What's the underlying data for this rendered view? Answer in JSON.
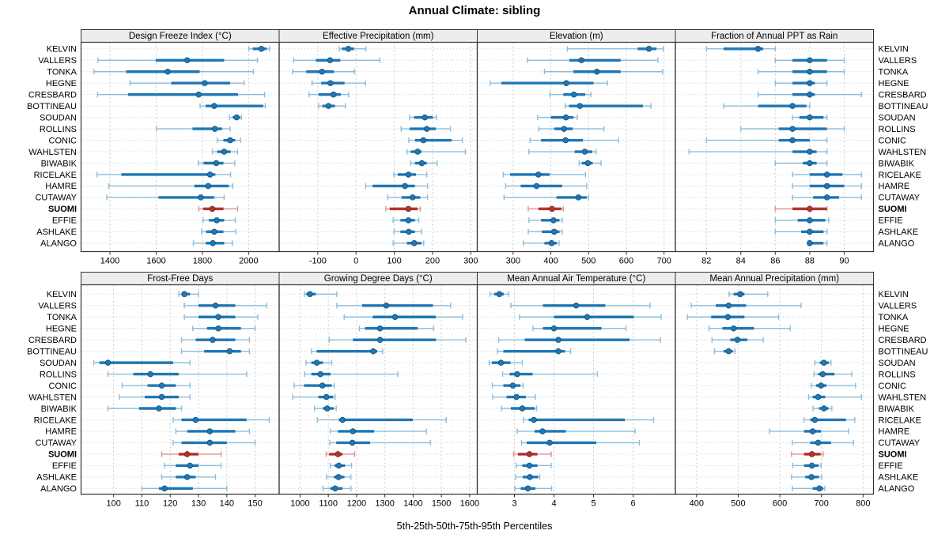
{
  "title": "Annual Climate: sibling",
  "footer_label": "5th-25th-50th-75th-95th Percentiles",
  "colors": {
    "series": "#1f77b4",
    "series_light": "#8bbcdc",
    "series_dark": "#0e4d79",
    "highlight": "#b33330",
    "highlight_light": "#e0968f",
    "highlight_dark": "#7a1f1c",
    "strip_bg": "#ededed",
    "panel_border": "#333333",
    "grid": "#c9c9c9",
    "text": "#000000"
  },
  "chart_data": {
    "type": "percentile-dotplot",
    "percentiles": [
      "5th",
      "25th",
      "50th",
      "75th",
      "95th"
    ],
    "legend_note": "thin line = 5th-95th, thick line = 25th-75th, dot = 50th",
    "sites": [
      "KELVIN",
      "VALLERS",
      "TONKA",
      "HEGNE",
      "CRESBARD",
      "BOTTINEAU",
      "SOUDAN",
      "ROLLINS",
      "CONIC",
      "WAHLSTEN",
      "BIWABIK",
      "RICELAKE",
      "HAMRE",
      "CUTAWAY",
      "SUOMI",
      "EFFIE",
      "ASHLAKE",
      "ALANGO"
    ],
    "highlight_site": "SUOMI",
    "grid": true,
    "panels": [
      {
        "title": "Design Freeze Index (°C)",
        "row": 0,
        "col": 0,
        "xlim": [
          1275,
          2132
        ],
        "ticks": [
          1400,
          1600,
          1800,
          2000
        ],
        "values": [
          [
            2000,
            2018,
            2055,
            2078,
            2090
          ],
          [
            1348,
            1598,
            1734,
            1894,
            2038
          ],
          [
            1331,
            1470,
            1650,
            1788,
            2020
          ],
          [
            1487,
            1665,
            1810,
            1920,
            1980
          ],
          [
            1346,
            1478,
            1784,
            1954,
            2069
          ],
          [
            1790,
            1814,
            1851,
            2063,
            2072
          ],
          [
            1917,
            1931,
            1948,
            1963,
            1969
          ],
          [
            1601,
            1757,
            1854,
            1885,
            1920
          ],
          [
            1864,
            1891,
            1920,
            1942,
            1965
          ],
          [
            1843,
            1864,
            1894,
            1922,
            1952
          ],
          [
            1782,
            1805,
            1860,
            1891,
            1940
          ],
          [
            1344,
            1449,
            1833,
            1856,
            1922
          ],
          [
            1395,
            1765,
            1825,
            1914,
            1931
          ],
          [
            1386,
            1610,
            1793,
            1851,
            1894
          ],
          [
            1784,
            1803,
            1843,
            1891,
            1952
          ],
          [
            1803,
            1828,
            1862,
            1894,
            1942
          ],
          [
            1796,
            1816,
            1851,
            1891,
            1945
          ],
          [
            1761,
            1814,
            1845,
            1894,
            1929
          ]
        ]
      },
      {
        "title": "Effective Precipitation (mm)",
        "row": 0,
        "col": 1,
        "xlim": [
          -201,
          317
        ],
        "ticks": [
          -100,
          0,
          100,
          200,
          300
        ],
        "values": [
          [
            -44,
            -37,
            -20,
            -5,
            26
          ],
          [
            -163,
            -105,
            -68,
            -41,
            62
          ],
          [
            -166,
            -130,
            -89,
            -58,
            -4
          ],
          [
            -115,
            -91,
            -67,
            -30,
            25
          ],
          [
            -123,
            -98,
            -59,
            -40,
            -19
          ],
          [
            -98,
            -88,
            -72,
            -55,
            -28
          ],
          [
            140,
            152,
            180,
            201,
            210
          ],
          [
            118,
            140,
            185,
            209,
            247
          ],
          [
            138,
            154,
            176,
            250,
            278
          ],
          [
            133,
            143,
            161,
            171,
            286
          ],
          [
            143,
            154,
            172,
            185,
            212
          ],
          [
            99,
            109,
            137,
            157,
            185
          ],
          [
            25,
            43,
            128,
            154,
            187
          ],
          [
            83,
            119,
            148,
            168,
            187
          ],
          [
            78,
            88,
            137,
            161,
            168
          ],
          [
            97,
            116,
            137,
            154,
            164
          ],
          [
            99,
            116,
            138,
            154,
            171
          ],
          [
            97,
            133,
            152,
            171,
            177
          ]
        ]
      },
      {
        "title": "Elevation (m)",
        "row": 0,
        "col": 2,
        "xlim": [
          205,
          730
        ],
        "ticks": [
          300,
          400,
          500,
          600,
          700
        ],
        "values": [
          [
            444,
            630,
            660,
            680,
            698
          ],
          [
            338,
            449,
            481,
            585,
            684
          ],
          [
            383,
            460,
            522,
            585,
            696
          ],
          [
            239,
            269,
            441,
            513,
            550
          ],
          [
            397,
            433,
            461,
            491,
            506
          ],
          [
            438,
            448,
            477,
            644,
            665
          ],
          [
            365,
            400,
            440,
            460,
            470
          ],
          [
            368,
            409,
            435,
            458,
            541
          ],
          [
            345,
            374,
            439,
            485,
            579
          ],
          [
            342,
            463,
            490,
            510,
            520
          ],
          [
            475,
            482,
            498,
            511,
            533
          ],
          [
            274,
            292,
            367,
            397,
            492
          ],
          [
            280,
            320,
            362,
            430,
            495
          ],
          [
            276,
            415,
            473,
            495,
            500
          ],
          [
            340,
            367,
            403,
            428,
            433
          ],
          [
            342,
            374,
            407,
            423,
            430
          ],
          [
            340,
            376,
            409,
            423,
            430
          ],
          [
            327,
            383,
            402,
            416,
            422
          ]
        ]
      },
      {
        "title": "Fraction of Annual PPT as Rain",
        "row": 0,
        "col": 3,
        "xlim": [
          80.2,
          91.7
        ],
        "ticks": [
          82,
          84,
          86,
          88,
          90
        ],
        "values": [
          [
            82,
            83,
            85,
            85.3,
            86
          ],
          [
            86,
            87,
            88,
            89,
            90
          ],
          [
            85,
            87,
            88,
            89,
            90
          ],
          [
            86,
            87,
            88,
            88.3,
            89
          ],
          [
            85,
            87,
            88,
            88.3,
            91
          ],
          [
            83,
            85,
            87,
            87.8,
            88
          ],
          [
            87,
            87.4,
            88,
            88.8,
            89
          ],
          [
            84,
            86.2,
            87,
            89,
            90
          ],
          [
            82,
            86.2,
            87,
            88,
            89
          ],
          [
            81,
            87,
            88,
            88.4,
            89
          ],
          [
            86,
            87.6,
            88,
            88.4,
            89
          ],
          [
            87,
            88,
            89,
            89.9,
            91
          ],
          [
            87,
            88,
            89,
            90,
            91
          ],
          [
            87,
            88.2,
            89,
            89.7,
            91
          ],
          [
            86,
            87,
            88,
            89,
            89
          ],
          [
            86,
            87.3,
            88,
            88.9,
            89.1
          ],
          [
            86,
            87.5,
            88,
            88.8,
            89
          ],
          [
            87.9,
            88,
            88,
            88.8,
            89
          ]
        ]
      },
      {
        "title": "Frost-Free Days",
        "row": 1,
        "col": 0,
        "xlim": [
          88.5,
          158.5
        ],
        "ticks": [
          100,
          110,
          120,
          130,
          140,
          150
        ],
        "values": [
          [
            123,
            124,
            125,
            127,
            130
          ],
          [
            125,
            130,
            136,
            143,
            154
          ],
          [
            125,
            130,
            137,
            143,
            151
          ],
          [
            128,
            133,
            137,
            145,
            150
          ],
          [
            124,
            129,
            135,
            143,
            148
          ],
          [
            124,
            132,
            141,
            145,
            148
          ],
          [
            93,
            95,
            98,
            121,
            127
          ],
          [
            98,
            107,
            113,
            123,
            147
          ],
          [
            103,
            112,
            117,
            122,
            127
          ],
          [
            102,
            111,
            117,
            123,
            127
          ],
          [
            98,
            109,
            116,
            122,
            124
          ],
          [
            121,
            124,
            129,
            147,
            155
          ],
          [
            122,
            126,
            134,
            143,
            148
          ],
          [
            121,
            124,
            134,
            140,
            150
          ],
          [
            117,
            123,
            126,
            130,
            138
          ],
          [
            118,
            122,
            127,
            130,
            138
          ],
          [
            117,
            122,
            126,
            129,
            136
          ],
          [
            110,
            116,
            118,
            128,
            140
          ]
        ]
      },
      {
        "title": "Growing Degree Days (°C)",
        "row": 1,
        "col": 1,
        "xlim": [
          926,
          1627
        ],
        "ticks": [
          1000,
          1100,
          1200,
          1300,
          1400,
          1500,
          1600
        ],
        "values": [
          [
            1015,
            1022,
            1035,
            1056,
            1130
          ],
          [
            1130,
            1220,
            1305,
            1470,
            1533
          ],
          [
            1156,
            1257,
            1336,
            1480,
            1575
          ],
          [
            1210,
            1230,
            1283,
            1416,
            1472
          ],
          [
            1103,
            1187,
            1283,
            1481,
            1587
          ],
          [
            1040,
            1059,
            1259,
            1273,
            1292
          ],
          [
            1021,
            1040,
            1059,
            1081,
            1112
          ],
          [
            1016,
            1040,
            1072,
            1108,
            1346
          ],
          [
            979,
            1014,
            1079,
            1112,
            1121
          ],
          [
            974,
            1065,
            1093,
            1117,
            1124
          ],
          [
            1051,
            1081,
            1096,
            1119,
            1128
          ],
          [
            1061,
            1137,
            1150,
            1399,
            1517
          ],
          [
            1107,
            1134,
            1187,
            1262,
            1447
          ],
          [
            1105,
            1128,
            1185,
            1248,
            1461
          ],
          [
            1092,
            1103,
            1134,
            1150,
            1193
          ],
          [
            1107,
            1122,
            1137,
            1159,
            1182
          ],
          [
            1093,
            1120,
            1136,
            1157,
            1180
          ],
          [
            1081,
            1107,
            1124,
            1150,
            1180
          ]
        ]
      },
      {
        "title": "Mean Annual Air Temperature (°C)",
        "row": 1,
        "col": 2,
        "xlim": [
          2.06,
          7.07
        ],
        "ticks": [
          3,
          4,
          5,
          6
        ],
        "values": [
          [
            2.38,
            2.49,
            2.62,
            2.73,
            2.85
          ],
          [
            2.91,
            3.72,
            4.56,
            5.3,
            6.43
          ],
          [
            3.13,
            4.0,
            4.84,
            6.02,
            6.71
          ],
          [
            3.47,
            3.72,
            4.0,
            5.2,
            5.82
          ],
          [
            2.6,
            3.26,
            4.11,
            5.91,
            6.69
          ],
          [
            2.57,
            2.72,
            4.11,
            4.28,
            4.42
          ],
          [
            2.36,
            2.43,
            2.66,
            2.9,
            3.2
          ],
          [
            2.7,
            2.88,
            3.07,
            3.46,
            5.1
          ],
          [
            2.44,
            2.72,
            2.96,
            3.15,
            3.22
          ],
          [
            2.45,
            2.8,
            3.05,
            3.29,
            3.53
          ],
          [
            2.67,
            2.91,
            3.2,
            3.51,
            3.56
          ],
          [
            3.23,
            3.36,
            3.49,
            5.79,
            6.52
          ],
          [
            3.07,
            3.51,
            3.71,
            4.3,
            6.05
          ],
          [
            3.18,
            3.31,
            3.89,
            5.07,
            6.16
          ],
          [
            2.98,
            3.09,
            3.38,
            3.58,
            3.93
          ],
          [
            3.05,
            3.2,
            3.38,
            3.58,
            3.93
          ],
          [
            3.03,
            3.21,
            3.39,
            3.6,
            3.64
          ],
          [
            3.01,
            3.16,
            3.34,
            3.53,
            3.94
          ]
        ]
      },
      {
        "title": "Mean Annual Precipitation (mm)",
        "row": 1,
        "col": 3,
        "xlim": [
          349,
          825
        ],
        "ticks": [
          400,
          500,
          600,
          700,
          800
        ],
        "values": [
          [
            478,
            489,
            505,
            515,
            571
          ],
          [
            387,
            446,
            477,
            519,
            651
          ],
          [
            378,
            435,
            475,
            515,
            597
          ],
          [
            430,
            462,
            489,
            538,
            625
          ],
          [
            437,
            481,
            498,
            522,
            560
          ],
          [
            443,
            465,
            477,
            487,
            492
          ],
          [
            684,
            696,
            706,
            718,
            723
          ],
          [
            682,
            692,
            703,
            731,
            773
          ],
          [
            675,
            687,
            699,
            712,
            782
          ],
          [
            669,
            679,
            692,
            709,
            796
          ],
          [
            680,
            694,
            706,
            717,
            725
          ],
          [
            658,
            673,
            684,
            759,
            780
          ],
          [
            575,
            658,
            679,
            699,
            765
          ],
          [
            630,
            673,
            692,
            723,
            777
          ],
          [
            628,
            658,
            677,
            698,
            704
          ],
          [
            631,
            658,
            677,
            693,
            699
          ],
          [
            628,
            661,
            676,
            694,
            701
          ],
          [
            630,
            679,
            695,
            704,
            708
          ]
        ]
      }
    ]
  }
}
